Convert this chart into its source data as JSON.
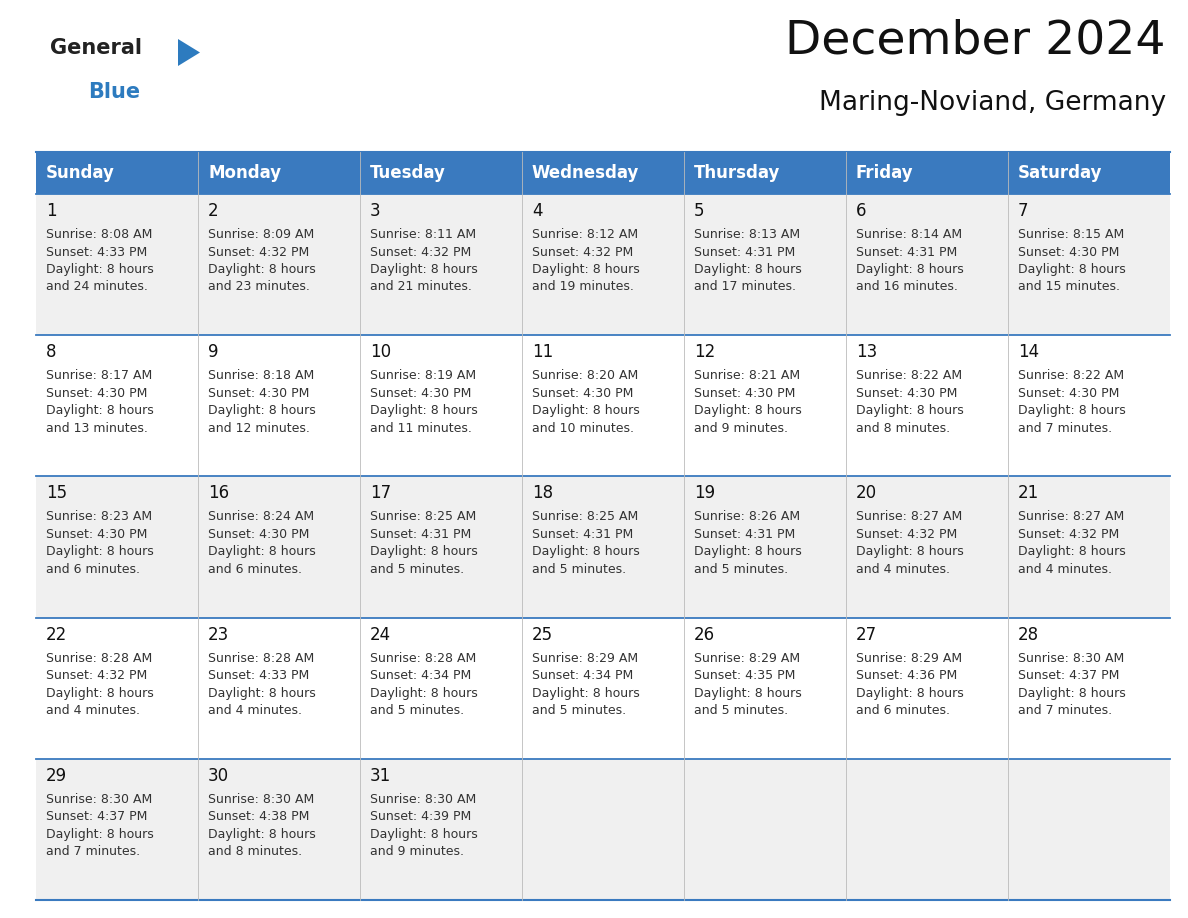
{
  "title": "December 2024",
  "subtitle": "Maring-Noviand, Germany",
  "header_bg": "#3a7abf",
  "header_text_color": "#ffffff",
  "cell_bg_odd": "#f0f0f0",
  "cell_bg_even": "#ffffff",
  "day_names": [
    "Sunday",
    "Monday",
    "Tuesday",
    "Wednesday",
    "Thursday",
    "Friday",
    "Saturday"
  ],
  "weeks": [
    [
      {
        "day": 1,
        "sunrise": "8:08 AM",
        "sunset": "4:33 PM",
        "daylight": "8 hours\nand 24 minutes."
      },
      {
        "day": 2,
        "sunrise": "8:09 AM",
        "sunset": "4:32 PM",
        "daylight": "8 hours\nand 23 minutes."
      },
      {
        "day": 3,
        "sunrise": "8:11 AM",
        "sunset": "4:32 PM",
        "daylight": "8 hours\nand 21 minutes."
      },
      {
        "day": 4,
        "sunrise": "8:12 AM",
        "sunset": "4:32 PM",
        "daylight": "8 hours\nand 19 minutes."
      },
      {
        "day": 5,
        "sunrise": "8:13 AM",
        "sunset": "4:31 PM",
        "daylight": "8 hours\nand 17 minutes."
      },
      {
        "day": 6,
        "sunrise": "8:14 AM",
        "sunset": "4:31 PM",
        "daylight": "8 hours\nand 16 minutes."
      },
      {
        "day": 7,
        "sunrise": "8:15 AM",
        "sunset": "4:30 PM",
        "daylight": "8 hours\nand 15 minutes."
      }
    ],
    [
      {
        "day": 8,
        "sunrise": "8:17 AM",
        "sunset": "4:30 PM",
        "daylight": "8 hours\nand 13 minutes."
      },
      {
        "day": 9,
        "sunrise": "8:18 AM",
        "sunset": "4:30 PM",
        "daylight": "8 hours\nand 12 minutes."
      },
      {
        "day": 10,
        "sunrise": "8:19 AM",
        "sunset": "4:30 PM",
        "daylight": "8 hours\nand 11 minutes."
      },
      {
        "day": 11,
        "sunrise": "8:20 AM",
        "sunset": "4:30 PM",
        "daylight": "8 hours\nand 10 minutes."
      },
      {
        "day": 12,
        "sunrise": "8:21 AM",
        "sunset": "4:30 PM",
        "daylight": "8 hours\nand 9 minutes."
      },
      {
        "day": 13,
        "sunrise": "8:22 AM",
        "sunset": "4:30 PM",
        "daylight": "8 hours\nand 8 minutes."
      },
      {
        "day": 14,
        "sunrise": "8:22 AM",
        "sunset": "4:30 PM",
        "daylight": "8 hours\nand 7 minutes."
      }
    ],
    [
      {
        "day": 15,
        "sunrise": "8:23 AM",
        "sunset": "4:30 PM",
        "daylight": "8 hours\nand 6 minutes."
      },
      {
        "day": 16,
        "sunrise": "8:24 AM",
        "sunset": "4:30 PM",
        "daylight": "8 hours\nand 6 minutes."
      },
      {
        "day": 17,
        "sunrise": "8:25 AM",
        "sunset": "4:31 PM",
        "daylight": "8 hours\nand 5 minutes."
      },
      {
        "day": 18,
        "sunrise": "8:25 AM",
        "sunset": "4:31 PM",
        "daylight": "8 hours\nand 5 minutes."
      },
      {
        "day": 19,
        "sunrise": "8:26 AM",
        "sunset": "4:31 PM",
        "daylight": "8 hours\nand 5 minutes."
      },
      {
        "day": 20,
        "sunrise": "8:27 AM",
        "sunset": "4:32 PM",
        "daylight": "8 hours\nand 4 minutes."
      },
      {
        "day": 21,
        "sunrise": "8:27 AM",
        "sunset": "4:32 PM",
        "daylight": "8 hours\nand 4 minutes."
      }
    ],
    [
      {
        "day": 22,
        "sunrise": "8:28 AM",
        "sunset": "4:32 PM",
        "daylight": "8 hours\nand 4 minutes."
      },
      {
        "day": 23,
        "sunrise": "8:28 AM",
        "sunset": "4:33 PM",
        "daylight": "8 hours\nand 4 minutes."
      },
      {
        "day": 24,
        "sunrise": "8:28 AM",
        "sunset": "4:34 PM",
        "daylight": "8 hours\nand 5 minutes."
      },
      {
        "day": 25,
        "sunrise": "8:29 AM",
        "sunset": "4:34 PM",
        "daylight": "8 hours\nand 5 minutes."
      },
      {
        "day": 26,
        "sunrise": "8:29 AM",
        "sunset": "4:35 PM",
        "daylight": "8 hours\nand 5 minutes."
      },
      {
        "day": 27,
        "sunrise": "8:29 AM",
        "sunset": "4:36 PM",
        "daylight": "8 hours\nand 6 minutes."
      },
      {
        "day": 28,
        "sunrise": "8:30 AM",
        "sunset": "4:37 PM",
        "daylight": "8 hours\nand 7 minutes."
      }
    ],
    [
      {
        "day": 29,
        "sunrise": "8:30 AM",
        "sunset": "4:37 PM",
        "daylight": "8 hours\nand 7 minutes."
      },
      {
        "day": 30,
        "sunrise": "8:30 AM",
        "sunset": "4:38 PM",
        "daylight": "8 hours\nand 8 minutes."
      },
      {
        "day": 31,
        "sunrise": "8:30 AM",
        "sunset": "4:39 PM",
        "daylight": "8 hours\nand 9 minutes."
      },
      null,
      null,
      null,
      null
    ]
  ],
  "logo_general_color": "#222222",
  "logo_blue_color": "#2d7bbf",
  "line_color": "#3a7abf",
  "text_color_dark": "#111111",
  "cell_text_color": "#333333",
  "title_fontsize": 34,
  "subtitle_fontsize": 19,
  "header_fontsize": 12,
  "day_num_fontsize": 12,
  "cell_fontsize": 9.0,
  "logo_fontsize": 15
}
